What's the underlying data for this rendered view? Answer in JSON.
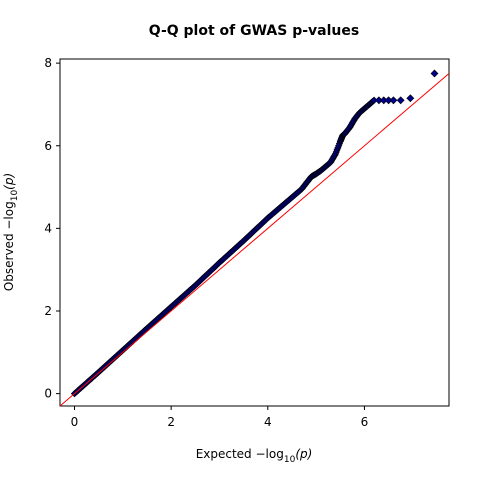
{
  "chart_data": {
    "type": "scatter",
    "title": "Q-Q plot of GWAS p-values",
    "xlabel": {
      "prefix": "Expected  ",
      "expr": "−log",
      "subscript": "10",
      "arg": "(p)"
    },
    "ylabel": {
      "prefix": "Observed  ",
      "expr": "−log",
      "subscript": "10",
      "arg": "(p)"
    },
    "xlim": [
      -0.3,
      7.75
    ],
    "ylim": [
      -0.3,
      8.1
    ],
    "xticks": [
      "0",
      "2",
      "4",
      "6"
    ],
    "yticks": [
      "0",
      "2",
      "4",
      "6",
      "8"
    ],
    "grid": false,
    "reference_line": {
      "from": [
        -0.3,
        -0.3
      ],
      "to": [
        7.75,
        7.75
      ],
      "color": "#ff0000"
    },
    "marker_color": "#00008b",
    "series": [
      {
        "points_line": {
          "x": [
            0.0,
            0.5,
            1.0,
            1.5,
            2.0,
            2.5,
            3.0,
            3.5,
            4.0,
            4.3,
            4.5,
            4.7,
            4.8,
            4.9,
            5.0,
            5.1,
            5.2,
            5.3,
            5.4,
            5.5,
            5.55,
            5.6,
            5.7,
            5.8,
            5.9,
            6.0,
            6.1,
            6.2
          ],
          "y": [
            0.0,
            0.52,
            1.05,
            1.58,
            2.1,
            2.62,
            3.17,
            3.7,
            4.25,
            4.55,
            4.75,
            4.95,
            5.1,
            5.25,
            5.32,
            5.4,
            5.5,
            5.6,
            5.8,
            6.1,
            6.25,
            6.3,
            6.45,
            6.65,
            6.8,
            6.9,
            7.0,
            7.1
          ]
        },
        "points_extra": {
          "x": [
            6.3,
            6.4,
            6.5,
            6.6,
            6.75,
            6.95,
            7.45
          ],
          "y": [
            7.1,
            7.1,
            7.1,
            7.1,
            7.1,
            7.15,
            7.75
          ]
        }
      }
    ]
  }
}
